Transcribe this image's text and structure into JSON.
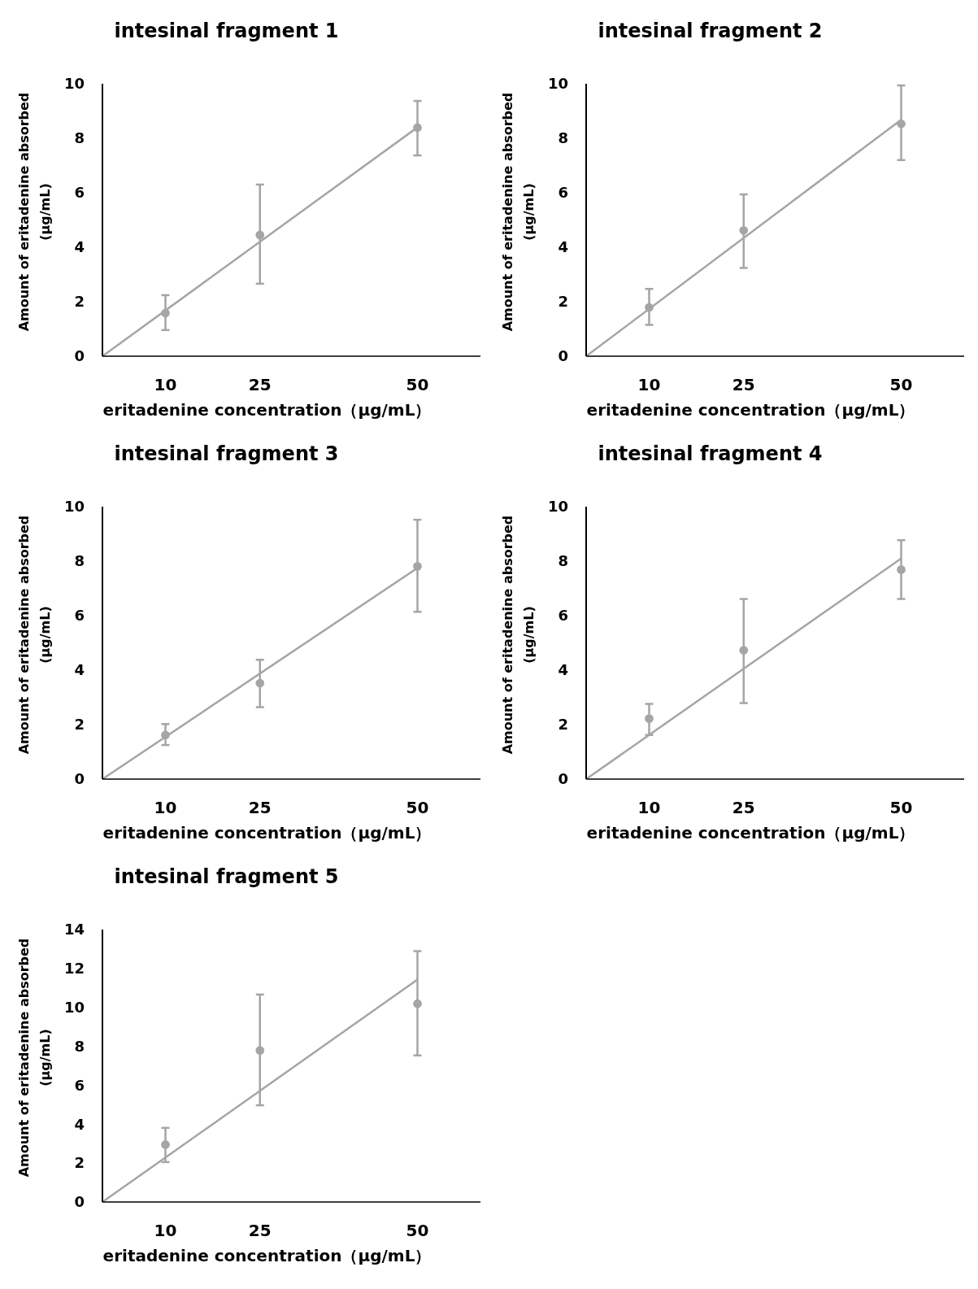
{
  "chart_data": [
    {
      "type": "scatter",
      "title": "intesinal fragment 1",
      "xlabel": "eritadenine concentration（μg/mL）",
      "ylabel": "Amount of eritadenine absorbed\n(μg/mL)",
      "xlim": [
        0,
        60
      ],
      "xticks": [
        10,
        25,
        50
      ],
      "ylim": [
        0,
        10
      ],
      "yticks": [
        0,
        2,
        4,
        6,
        8,
        10
      ],
      "series": [
        {
          "marker": "circle",
          "color": "#a5a5a5",
          "x": [
            10,
            25,
            50
          ],
          "values": [
            1.58,
            4.45,
            8.39
          ],
          "errors": [
            [
              0.96,
              2.24
            ],
            [
              2.66,
              6.3
            ],
            [
              7.37,
              9.37
            ]
          ]
        },
        {
          "type": "line",
          "color": "#a5a5a5",
          "x": [
            0,
            50
          ],
          "values": [
            0,
            8.4
          ]
        }
      ]
    },
    {
      "type": "scatter",
      "title": "intesinal fragment 2",
      "xlabel": "eritadenine concentration（μg/mL）",
      "ylabel": "Amount of eritadenine absorbed\n(μg/mL)",
      "xlim": [
        0,
        60
      ],
      "xticks": [
        10,
        25,
        50
      ],
      "ylim": [
        0,
        10
      ],
      "yticks": [
        0,
        2,
        4,
        6,
        8,
        10
      ],
      "series": [
        {
          "marker": "circle",
          "color": "#a5a5a5",
          "x": [
            10,
            25,
            50
          ],
          "values": [
            1.79,
            4.62,
            8.53
          ],
          "errors": [
            [
              1.15,
              2.47
            ],
            [
              3.24,
              5.94
            ],
            [
              7.2,
              9.94
            ]
          ]
        },
        {
          "type": "line",
          "color": "#a5a5a5",
          "x": [
            0,
            50
          ],
          "values": [
            0,
            8.68
          ]
        }
      ]
    },
    {
      "type": "scatter",
      "title": "intesinal fragment 3",
      "xlabel": "eritadenine concentration（μg/mL）",
      "ylabel": "Amount of eritadenine absorbed\n(μg/mL)",
      "xlim": [
        0,
        60
      ],
      "xticks": [
        10,
        25,
        50
      ],
      "ylim": [
        0,
        10
      ],
      "yticks": [
        0,
        2,
        4,
        6,
        8,
        10
      ],
      "series": [
        {
          "marker": "circle",
          "color": "#a5a5a5",
          "x": [
            10,
            25,
            50
          ],
          "values": [
            1.62,
            3.52,
            7.81
          ],
          "errors": [
            [
              1.25,
              2.02
            ],
            [
              2.64,
              4.38
            ],
            [
              6.14,
              9.52
            ]
          ]
        },
        {
          "type": "line",
          "color": "#a5a5a5",
          "x": [
            0,
            50
          ],
          "values": [
            0,
            7.75
          ]
        }
      ]
    },
    {
      "type": "scatter",
      "title": "intesinal fragment 4",
      "xlabel": "eritadenine concentration（μg/mL）",
      "ylabel": "Amount of eritadenine absorbed\n(μg/mL)",
      "xlim": [
        0,
        60
      ],
      "xticks": [
        10,
        25,
        50
      ],
      "ylim": [
        0,
        10
      ],
      "yticks": [
        0,
        2,
        4,
        6,
        8,
        10
      ],
      "series": [
        {
          "marker": "circle",
          "color": "#a5a5a5",
          "x": [
            10,
            25,
            50
          ],
          "values": [
            2.22,
            4.73,
            7.69
          ],
          "errors": [
            [
              1.62,
              2.76
            ],
            [
              2.79,
              6.61
            ],
            [
              6.61,
              8.77
            ]
          ]
        },
        {
          "type": "line",
          "color": "#a5a5a5",
          "x": [
            0,
            50
          ],
          "values": [
            0,
            8.1
          ]
        }
      ]
    },
    {
      "type": "scatter",
      "title": "intesinal fragment 5",
      "xlabel": "eritadenine concentration（μg/mL）",
      "ylabel": "Amount of eritadenine absorbed\n(μg/mL)",
      "xlim": [
        0,
        60
      ],
      "xticks": [
        10,
        25,
        50
      ],
      "ylim": [
        0,
        14
      ],
      "yticks": [
        0,
        2,
        4,
        6,
        8,
        10,
        12,
        14
      ],
      "series": [
        {
          "marker": "circle",
          "color": "#a5a5a5",
          "x": [
            10,
            25,
            50
          ],
          "values": [
            2.95,
            7.79,
            10.19
          ],
          "errors": [
            [
              2.05,
              3.81
            ],
            [
              4.97,
              10.66
            ],
            [
              7.53,
              12.89
            ]
          ]
        },
        {
          "type": "line",
          "color": "#a5a5a5",
          "x": [
            0,
            50
          ],
          "values": [
            0,
            11.43
          ]
        }
      ]
    }
  ]
}
